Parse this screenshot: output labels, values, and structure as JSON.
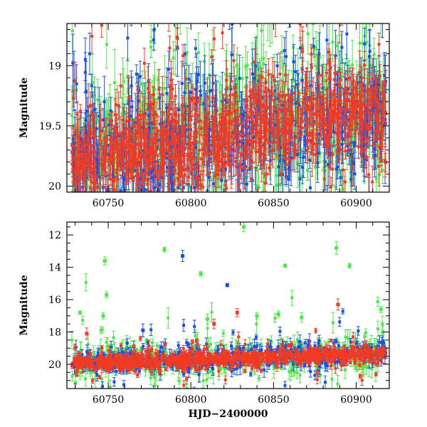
{
  "colors": {
    "green": "#4fe84a",
    "blue": "#1850e6",
    "red": "#f23b22",
    "axis": "#000000",
    "background": "#ffffff"
  },
  "chart_data": [
    {
      "id": "top",
      "type": "scatter",
      "error_bars": true,
      "title": "",
      "xlabel": "",
      "ylabel": "Magnitude",
      "xlim": [
        60725,
        60920
      ],
      "ylim": [
        20.05,
        18.65
      ],
      "y_inverted": true,
      "xticks": [
        60750,
        60800,
        60850,
        60900
      ],
      "yticks": [
        19,
        19.5,
        20
      ],
      "ytick_labels": [
        "19",
        "19.5",
        "20"
      ],
      "series": [
        {
          "color": "green",
          "start_hjd": 60728,
          "end_hjd": 60918,
          "mag_at_start": 19.7,
          "mag_at_end": 19.35,
          "scatter_mag": 0.45,
          "typical_error": 0.18,
          "approx_points": 650
        },
        {
          "color": "blue",
          "start_hjd": 60728,
          "end_hjd": 60918,
          "mag_at_start": 19.75,
          "mag_at_end": 19.4,
          "scatter_mag": 0.4,
          "typical_error": 0.16,
          "approx_points": 650
        },
        {
          "color": "red",
          "start_hjd": 60728,
          "end_hjd": 60918,
          "mag_at_start": 19.8,
          "mag_at_end": 19.35,
          "scatter_mag": 0.3,
          "typical_error": 0.12,
          "approx_points": 950
        }
      ]
    },
    {
      "id": "bottom",
      "type": "scatter",
      "error_bars": true,
      "title": "",
      "xlabel": "HJD−2400000",
      "ylabel": "Magnitude",
      "xlim": [
        60725,
        60920
      ],
      "ylim": [
        21.5,
        11.2
      ],
      "y_inverted": true,
      "xticks": [
        60750,
        60800,
        60850,
        60900
      ],
      "yticks": [
        12,
        14,
        16,
        18,
        20
      ],
      "ytick_labels": [
        "12",
        "14",
        "16",
        "18",
        "20"
      ],
      "series": [
        {
          "color": "green",
          "start_hjd": 60728,
          "end_hjd": 60918,
          "mag_at_start": 19.85,
          "mag_at_end": 19.3,
          "scatter_mag": 0.9,
          "typical_error": 0.4,
          "approx_points": 420
        },
        {
          "color": "blue",
          "start_hjd": 60728,
          "end_hjd": 60918,
          "mag_at_start": 19.85,
          "mag_at_end": 19.3,
          "scatter_mag": 0.65,
          "typical_error": 0.3,
          "approx_points": 420
        },
        {
          "color": "red",
          "start_hjd": 60728,
          "end_hjd": 60918,
          "mag_at_start": 19.95,
          "mag_at_end": 19.35,
          "scatter_mag": 0.35,
          "typical_error": 0.2,
          "approx_points": 850
        }
      ],
      "bright_points": [
        {
          "color": "green",
          "hjd": 60832,
          "mag": 11.5,
          "err": 0.3
        },
        {
          "color": "green",
          "hjd": 60888,
          "mag": 12.8,
          "err": 0.4
        },
        {
          "color": "green",
          "hjd": 60784,
          "mag": 12.9,
          "err": 0.15
        },
        {
          "color": "blue",
          "hjd": 60795,
          "mag": 13.3,
          "err": 0.35
        },
        {
          "color": "green",
          "hjd": 60748,
          "mag": 13.6,
          "err": 0.25
        },
        {
          "color": "green",
          "hjd": 60857,
          "mag": 13.9,
          "err": 0.1
        },
        {
          "color": "green",
          "hjd": 60896,
          "mag": 13.9,
          "err": 0.15
        },
        {
          "color": "green",
          "hjd": 60806,
          "mag": 14.4,
          "err": 0.15
        },
        {
          "color": "blue",
          "hjd": 60822,
          "mag": 15.1,
          "err": 0.1
        },
        {
          "color": "green",
          "hjd": 60749,
          "mag": 15.7,
          "err": 0.2
        },
        {
          "color": "red",
          "hjd": 60889,
          "mag": 16.3,
          "err": 0.35
        },
        {
          "color": "green",
          "hjd": 60915,
          "mag": 16.6,
          "err": 0.2
        },
        {
          "color": "green",
          "hjd": 60747,
          "mag": 17.0,
          "err": 0.2
        },
        {
          "color": "green",
          "hjd": 60733,
          "mag": 16.8,
          "err": 0.1
        },
        {
          "color": "green",
          "hjd": 60810,
          "mag": 17.2,
          "err": 0.3
        },
        {
          "color": "red",
          "hjd": 60828,
          "mag": 16.8,
          "err": 0.25
        },
        {
          "color": "green",
          "hjd": 60840,
          "mag": 17.0,
          "err": 0.2
        },
        {
          "color": "red",
          "hjd": 60814,
          "mag": 17.5,
          "err": 0.3
        },
        {
          "color": "green",
          "hjd": 60853,
          "mag": 16.9,
          "err": 0.2
        },
        {
          "color": "red",
          "hjd": 60737,
          "mag": 18.1,
          "err": 0.35
        },
        {
          "color": "blue",
          "hjd": 60771,
          "mag": 17.9,
          "err": 0.4
        },
        {
          "color": "green",
          "hjd": 60867,
          "mag": 17.1,
          "err": 0.3
        }
      ]
    }
  ]
}
